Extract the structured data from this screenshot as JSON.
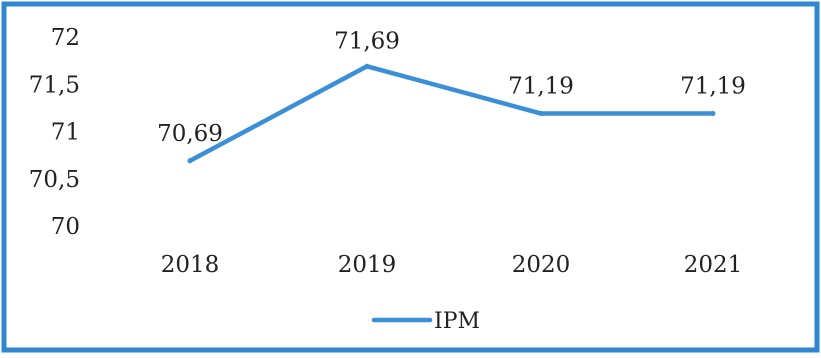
{
  "chart_data": {
    "type": "line",
    "categories": [
      "2018",
      "2019",
      "2020",
      "2021"
    ],
    "series": [
      {
        "name": "IPM",
        "values": [
          70.69,
          71.69,
          71.19,
          71.19
        ],
        "data_labels": [
          "70,69",
          "71,69",
          "71,19",
          "71,19"
        ]
      }
    ],
    "ylim": [
      70,
      72
    ],
    "yticks": [
      72,
      71.5,
      71,
      70.5,
      70
    ],
    "ytick_labels": [
      "72",
      "71,5",
      "71",
      "70,5",
      "70"
    ],
    "grid": false,
    "legend_position": "bottom",
    "colors": {
      "line": "#3a8fd6",
      "frame": "#2f86d1",
      "text": "#222222"
    }
  }
}
